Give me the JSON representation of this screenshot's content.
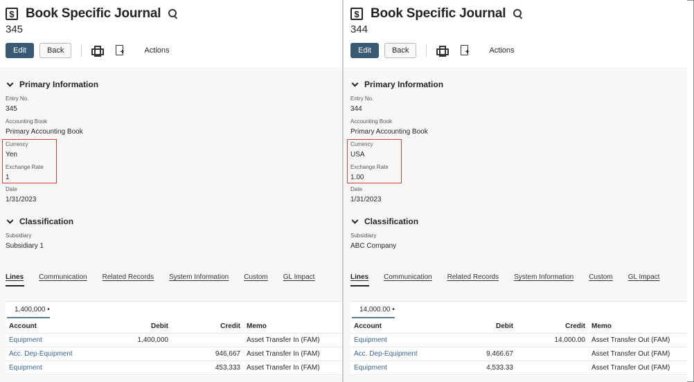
{
  "panels": [
    {
      "title": "Book Specific Journal",
      "record_number": "345",
      "toolbar": {
        "edit_label": "Edit",
        "back_label": "Back",
        "actions_label": "Actions"
      },
      "primary": {
        "heading": "Primary Information",
        "entry_no_label": "Entry No.",
        "entry_no": "345",
        "book_label": "Accounting Book",
        "book": "Primary Accounting Book",
        "currency_label": "Currency",
        "currency": "Yen",
        "rate_label": "Exchange Rate",
        "rate": "1",
        "date_label": "Date",
        "date": "1/31/2023"
      },
      "classification": {
        "heading": "Classification",
        "subsidiary_label": "Subsidiary",
        "subsidiary": "Subsidiary 1"
      },
      "tabs": [
        "Lines",
        "Communication",
        "Related Records",
        "System Information",
        "Custom",
        "GL Impact"
      ],
      "lines": {
        "total": "1,400,000 •",
        "headers": {
          "account": "Account",
          "debit": "Debit",
          "credit": "Credit",
          "memo": "Memo"
        },
        "rows": [
          {
            "account": "Equipment",
            "debit": "1,400,000",
            "credit": "",
            "memo": "Asset Transfer In (FAM)"
          },
          {
            "account": "Acc. Dep-Equipment",
            "debit": "",
            "credit": "946,667",
            "memo": "Asset Transfer In (FAM)"
          },
          {
            "account": "Equipment",
            "debit": "",
            "credit": "453,333",
            "memo": "Asset Transfer In (FAM)"
          }
        ]
      }
    },
    {
      "title": "Book Specific Journal",
      "record_number": "344",
      "toolbar": {
        "edit_label": "Edit",
        "back_label": "Back",
        "actions_label": "Actions"
      },
      "primary": {
        "heading": "Primary Information",
        "entry_no_label": "Entry No.",
        "entry_no": "344",
        "book_label": "Accounting Book",
        "book": "Primary Accounting Book",
        "currency_label": "Currency",
        "currency": "USA",
        "rate_label": "Exchange Rate",
        "rate": "1.00",
        "date_label": "Date",
        "date": "1/31/2023"
      },
      "classification": {
        "heading": "Classification",
        "subsidiary_label": "Subsidiary",
        "subsidiary": "ABC Company"
      },
      "tabs": [
        "Lines",
        "Communication",
        "Related Records",
        "System Information",
        "Custom",
        "GL Impact"
      ],
      "lines": {
        "total": "14,000.00 •",
        "headers": {
          "account": "Account",
          "debit": "Debit",
          "credit": "Credit",
          "memo": "Memo"
        },
        "rows": [
          {
            "account": "Equipment",
            "debit": "",
            "credit": "14,000.00",
            "memo": "Asset Transfer Out (FAM)"
          },
          {
            "account": "Acc. Dep-Equipment",
            "debit": "9,466.67",
            "credit": "",
            "memo": "Asset Transfer Out (FAM)"
          },
          {
            "account": "Equipment",
            "debit": "4,533.33",
            "credit": "",
            "memo": "Asset Transfer Out (FAM)"
          }
        ]
      }
    }
  ],
  "icons": [
    "record-icon",
    "search-icon",
    "print-icon",
    "new-document-icon",
    "chevron-down-icon"
  ],
  "colors": {
    "edit_button": "#3a5a74",
    "highlight_box": "#d33a3a",
    "link": "#3a6592"
  }
}
